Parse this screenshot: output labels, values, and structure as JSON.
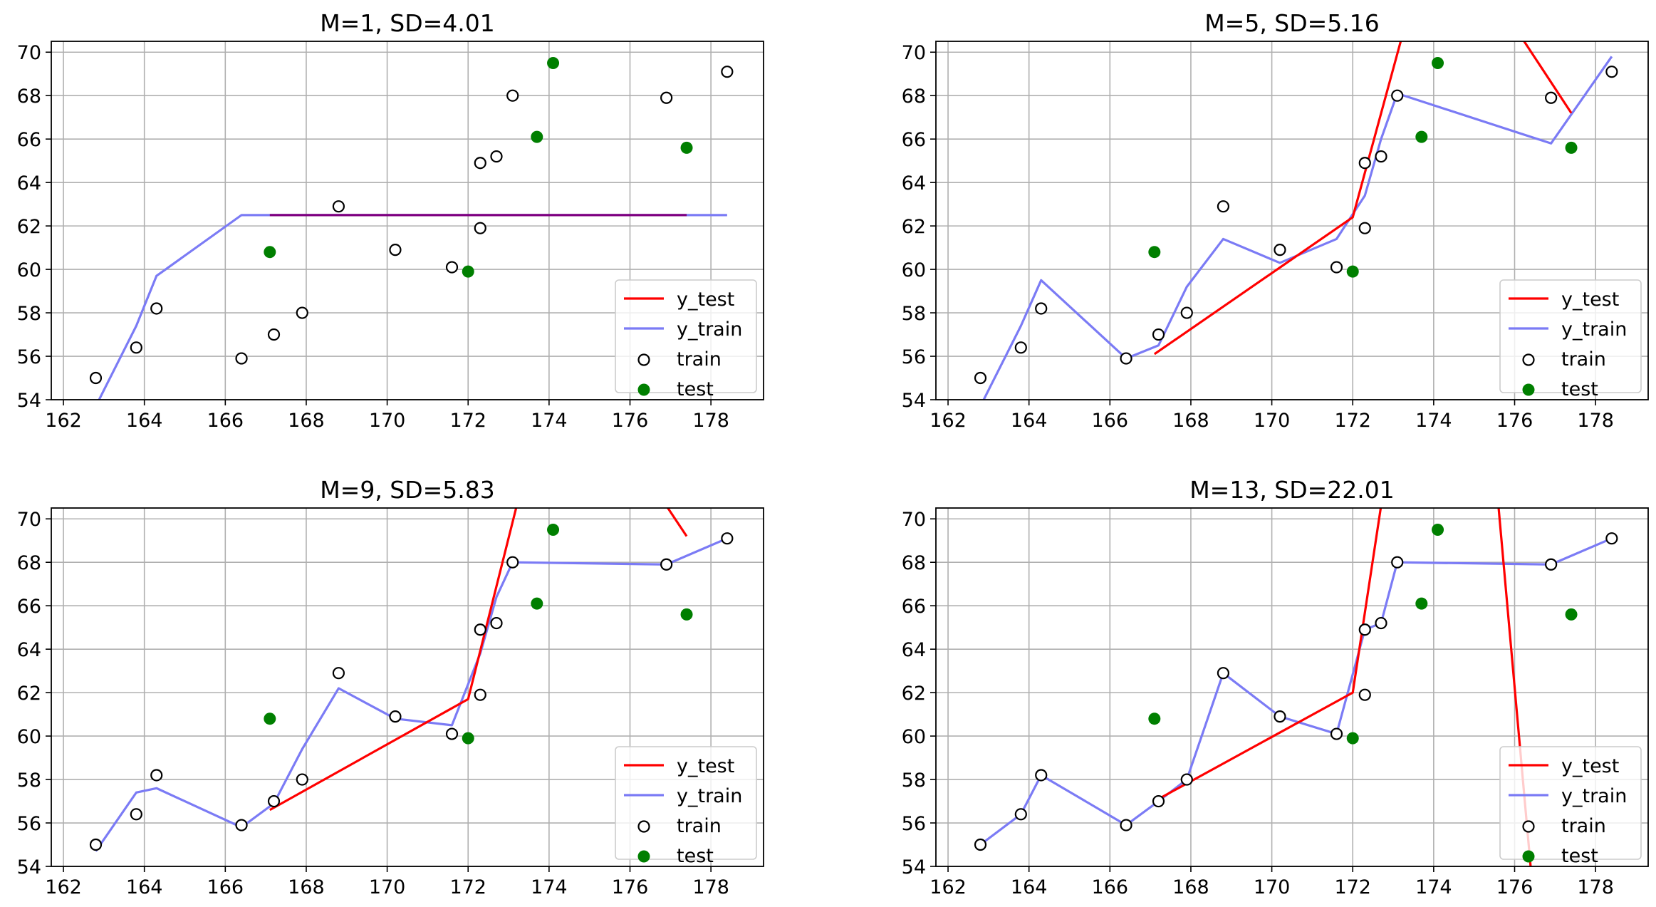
{
  "chart_data": [
    {
      "type": "line",
      "title": "M=1, SD=4.01",
      "xlim": [
        161.7,
        179.3
      ],
      "ylim": [
        54,
        70.5
      ],
      "xticks": [
        "162",
        "164",
        "166",
        "168",
        "170",
        "172",
        "174",
        "176",
        "178"
      ],
      "yticks": [
        "54",
        "56",
        "58",
        "60",
        "62",
        "64",
        "66",
        "68",
        "70"
      ],
      "grid": true,
      "legend": {
        "placement": "lower-right",
        "entries": [
          "y_test",
          "y_train",
          "train",
          "test"
        ]
      },
      "series": [
        {
          "name": "y_train",
          "type": "line",
          "color": "#7b7bf5",
          "x": [
            162.8,
            163.8,
            164.3,
            166.4,
            167.2,
            167.9,
            168.8,
            170.2,
            171.6,
            172.3,
            172.7,
            173.1,
            176.9,
            178.4
          ],
          "y": [
            53.7,
            57.4,
            59.7,
            62.5,
            62.5,
            62.5,
            62.5,
            62.5,
            62.5,
            62.5,
            62.5,
            62.5,
            62.5,
            62.5
          ]
        },
        {
          "name": "y_test",
          "type": "line",
          "color": "#7f007f",
          "x": [
            167.1,
            172.0,
            173.7,
            174.1,
            177.4
          ],
          "y": [
            62.5,
            62.5,
            62.5,
            62.5,
            62.5
          ]
        },
        {
          "name": "train",
          "type": "scatter",
          "marker": "open-circle",
          "x": [
            162.8,
            163.8,
            164.3,
            166.4,
            167.2,
            167.9,
            168.8,
            170.2,
            171.6,
            172.3,
            172.3,
            172.7,
            173.1,
            176.9,
            178.4
          ],
          "y": [
            55.0,
            56.4,
            58.2,
            55.9,
            57.0,
            58.0,
            62.9,
            60.9,
            60.1,
            61.9,
            64.9,
            65.2,
            68.0,
            67.9,
            69.1
          ]
        },
        {
          "name": "test",
          "type": "scatter",
          "marker": "filled-circle",
          "color": "#007f00",
          "x": [
            167.1,
            172.0,
            173.7,
            174.1,
            177.4
          ],
          "y": [
            60.8,
            59.9,
            66.1,
            69.5,
            65.6
          ]
        }
      ]
    },
    {
      "type": "line",
      "title": "M=5, SD=5.16",
      "xlim": [
        161.7,
        179.3
      ],
      "ylim": [
        54,
        70.5
      ],
      "xticks": [
        "162",
        "164",
        "166",
        "168",
        "170",
        "172",
        "174",
        "176",
        "178"
      ],
      "yticks": [
        "54",
        "56",
        "58",
        "60",
        "62",
        "64",
        "66",
        "68",
        "70"
      ],
      "grid": true,
      "legend": {
        "placement": "lower-right",
        "entries": [
          "y_test",
          "y_train",
          "train",
          "test"
        ]
      },
      "series": [
        {
          "name": "y_train",
          "type": "line",
          "color": "#7b7bf5",
          "x": [
            162.8,
            163.8,
            164.3,
            166.4,
            167.2,
            167.9,
            168.8,
            170.2,
            171.6,
            172.3,
            172.7,
            173.1,
            176.9,
            178.4
          ],
          "y": [
            53.7,
            57.4,
            59.5,
            55.9,
            56.5,
            59.2,
            61.4,
            60.3,
            61.4,
            63.4,
            66.0,
            68.1,
            65.8,
            69.8
          ]
        },
        {
          "name": "y_test",
          "type": "line",
          "color": "#ff0000",
          "x": [
            167.1,
            172.0,
            173.2,
            176.2,
            177.4
          ],
          "y": [
            56.1,
            62.4,
            70.6,
            70.6,
            67.2
          ]
        },
        {
          "name": "train",
          "type": "scatter",
          "marker": "open-circle",
          "x": [
            162.8,
            163.8,
            164.3,
            166.4,
            167.2,
            167.9,
            168.8,
            170.2,
            171.6,
            172.3,
            172.3,
            172.7,
            173.1,
            176.9,
            178.4
          ],
          "y": [
            55.0,
            56.4,
            58.2,
            55.9,
            57.0,
            58.0,
            62.9,
            60.9,
            60.1,
            61.9,
            64.9,
            65.2,
            68.0,
            67.9,
            69.1
          ]
        },
        {
          "name": "test",
          "type": "scatter",
          "marker": "filled-circle",
          "color": "#007f00",
          "x": [
            167.1,
            172.0,
            173.7,
            174.1,
            177.4
          ],
          "y": [
            60.8,
            59.9,
            66.1,
            69.5,
            65.6
          ]
        }
      ]
    },
    {
      "type": "line",
      "title": "M=9, SD=5.83",
      "xlim": [
        161.7,
        179.3
      ],
      "ylim": [
        54,
        70.5
      ],
      "xticks": [
        "162",
        "164",
        "166",
        "168",
        "170",
        "172",
        "174",
        "176",
        "178"
      ],
      "yticks": [
        "54",
        "56",
        "58",
        "60",
        "62",
        "64",
        "66",
        "68",
        "70"
      ],
      "grid": true,
      "legend": {
        "placement": "lower-right",
        "entries": [
          "y_test",
          "y_train",
          "train",
          "test"
        ]
      },
      "series": [
        {
          "name": "y_train",
          "type": "line",
          "color": "#7b7bf5",
          "x": [
            162.8,
            163.8,
            164.3,
            166.4,
            167.2,
            167.9,
            168.8,
            170.2,
            171.6,
            172.3,
            172.7,
            173.1,
            176.9,
            178.4
          ],
          "y": [
            54.7,
            57.4,
            57.6,
            55.8,
            56.9,
            59.4,
            62.2,
            60.8,
            60.5,
            63.8,
            66.4,
            68.0,
            67.9,
            69.1
          ]
        },
        {
          "name": "y_test",
          "type": "line",
          "color": "#ff0000",
          "x": [
            167.1,
            172.0,
            173.2,
            176.9,
            177.4
          ],
          "y": [
            56.6,
            61.7,
            70.6,
            70.6,
            69.2
          ]
        },
        {
          "name": "train",
          "type": "scatter",
          "marker": "open-circle",
          "x": [
            162.8,
            163.8,
            164.3,
            166.4,
            167.2,
            167.9,
            168.8,
            170.2,
            171.6,
            172.3,
            172.3,
            172.7,
            173.1,
            176.9,
            178.4
          ],
          "y": [
            55.0,
            56.4,
            58.2,
            55.9,
            57.0,
            58.0,
            62.9,
            60.9,
            60.1,
            61.9,
            64.9,
            65.2,
            68.0,
            67.9,
            69.1
          ]
        },
        {
          "name": "test",
          "type": "scatter",
          "marker": "filled-circle",
          "color": "#007f00",
          "x": [
            167.1,
            172.0,
            173.7,
            174.1,
            177.4
          ],
          "y": [
            60.8,
            59.9,
            66.1,
            69.5,
            65.6
          ]
        }
      ]
    },
    {
      "type": "line",
      "title": "M=13, SD=22.01",
      "xlim": [
        161.7,
        179.3
      ],
      "ylim": [
        54,
        70.5
      ],
      "xticks": [
        "162",
        "164",
        "166",
        "168",
        "170",
        "172",
        "174",
        "176",
        "178"
      ],
      "yticks": [
        "54",
        "56",
        "58",
        "60",
        "62",
        "64",
        "66",
        "68",
        "70"
      ],
      "grid": true,
      "legend": {
        "placement": "lower-right",
        "entries": [
          "y_test",
          "y_train",
          "train",
          "test"
        ]
      },
      "series": [
        {
          "name": "y_train",
          "type": "line",
          "color": "#7b7bf5",
          "x": [
            162.8,
            163.8,
            164.3,
            166.4,
            167.2,
            167.9,
            168.8,
            170.2,
            171.6,
            172.3,
            172.7,
            173.1,
            176.9,
            178.4
          ],
          "y": [
            55.0,
            56.4,
            58.2,
            55.9,
            57.0,
            58.0,
            62.9,
            60.9,
            60.1,
            64.9,
            65.2,
            68.0,
            67.9,
            69.1
          ]
        },
        {
          "name": "y_test",
          "type": "line",
          "color": "#ff0000",
          "x": [
            167.1,
            172.0,
            172.7,
            175.6,
            176.4
          ],
          "y": [
            57.0,
            62.0,
            70.6,
            70.6,
            53.9
          ]
        },
        {
          "name": "train",
          "type": "scatter",
          "marker": "open-circle",
          "x": [
            162.8,
            163.8,
            164.3,
            166.4,
            167.2,
            167.9,
            168.8,
            170.2,
            171.6,
            172.3,
            172.3,
            172.7,
            173.1,
            176.9,
            178.4
          ],
          "y": [
            55.0,
            56.4,
            58.2,
            55.9,
            57.0,
            58.0,
            62.9,
            60.9,
            60.1,
            61.9,
            64.9,
            65.2,
            68.0,
            67.9,
            69.1
          ]
        },
        {
          "name": "test",
          "type": "scatter",
          "marker": "filled-circle",
          "color": "#007f00",
          "x": [
            167.1,
            172.0,
            173.7,
            174.1,
            177.4
          ],
          "y": [
            60.8,
            59.9,
            66.1,
            69.5,
            65.6
          ]
        }
      ]
    }
  ]
}
